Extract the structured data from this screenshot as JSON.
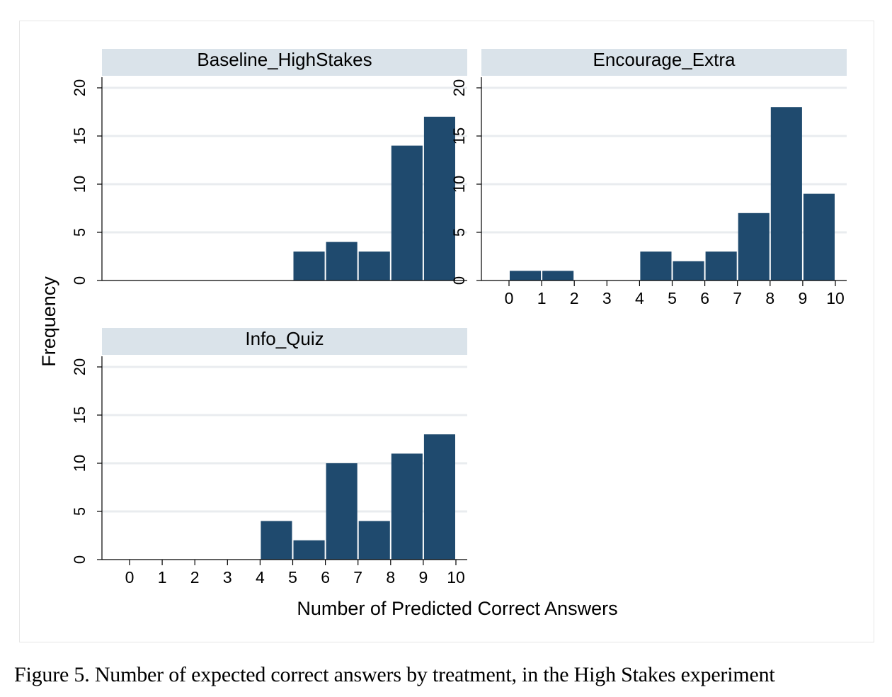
{
  "colors": {
    "bar": "#1f4a6e",
    "strip": "#dae3ea",
    "grid": "#e9ecef",
    "axis": "#000000",
    "frame": "#e6e6e6"
  },
  "caption": "Figure 5. Number of expected correct answers by treatment, in the High Stakes experiment",
  "chart_data": {
    "type": "bar",
    "subtype": "histogram",
    "xlabel": "Number of Predicted Correct Answers",
    "ylabel": "Frequency",
    "ylim": [
      0,
      21
    ],
    "yticks": [
      0,
      5,
      10,
      15,
      20
    ],
    "xlim": [
      -0.8,
      10.2
    ],
    "xticks": [
      0,
      1,
      2,
      3,
      4,
      5,
      6,
      7,
      8,
      9,
      10
    ],
    "bin_edges": [
      0,
      1,
      2,
      3,
      4,
      5,
      6,
      7,
      8,
      9,
      10
    ],
    "grid": true,
    "panels": [
      {
        "name": "Baseline_HighStakes",
        "values": [
          0,
          0,
          0,
          0,
          0,
          3,
          4,
          3,
          14,
          17
        ],
        "show_xaxis": false
      },
      {
        "name": "Encourage_Extra",
        "values": [
          1,
          1,
          0,
          0,
          3,
          2,
          3,
          7,
          18,
          9
        ],
        "show_xaxis": true
      },
      {
        "name": "Info_Quiz",
        "values": [
          0,
          0,
          0,
          0,
          4,
          2,
          10,
          4,
          11,
          13
        ],
        "show_xaxis": true
      }
    ]
  }
}
